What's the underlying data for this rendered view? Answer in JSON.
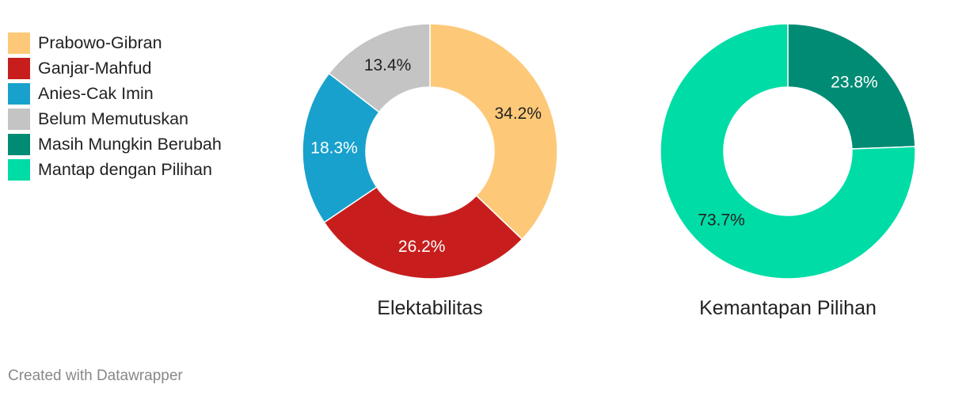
{
  "legend": {
    "items": [
      {
        "label": "Prabowo-Gibran",
        "color": "#fdc978"
      },
      {
        "label": "Ganjar-Mahfud",
        "color": "#c71e1d"
      },
      {
        "label": "Anies-Cak Imin",
        "color": "#18a1cd"
      },
      {
        "label": "Belum Memutuskan",
        "color": "#c4c4c4"
      },
      {
        "label": "Masih Mungkin Berubah",
        "color": "#008b74"
      },
      {
        "label": "Mantap dengan Pilihan",
        "color": "#00dca6"
      }
    ]
  },
  "chart_data": [
    {
      "type": "pie",
      "donut": true,
      "title": "Elektabilitas",
      "slices": [
        {
          "label": "Prabowo-Gibran",
          "value": 34.2,
          "display": "34.2%",
          "color": "#fdc978",
          "label_color": "#222222"
        },
        {
          "label": "Ganjar-Mahfud",
          "value": 26.2,
          "display": "26.2%",
          "color": "#c71e1d",
          "label_color": "#ffffff"
        },
        {
          "label": "Anies-Cak Imin",
          "value": 18.3,
          "display": "18.3%",
          "color": "#18a1cd",
          "label_color": "#ffffff"
        },
        {
          "label": "Belum Memutuskan",
          "value": 13.4,
          "display": "13.4%",
          "color": "#c4c4c4",
          "label_color": "#222222"
        }
      ]
    },
    {
      "type": "pie",
      "donut": true,
      "title": "Kemantapan Pilihan",
      "slices": [
        {
          "label": "Masih Mungkin Berubah",
          "value": 23.8,
          "display": "23.8%",
          "color": "#008b74",
          "label_color": "#ffffff"
        },
        {
          "label": "Mantap dengan Pilihan",
          "value": 73.7,
          "display": "73.7%",
          "color": "#00dca6",
          "label_color": "#222222"
        }
      ]
    }
  ],
  "footer": {
    "credit": "Created with Datawrapper"
  }
}
